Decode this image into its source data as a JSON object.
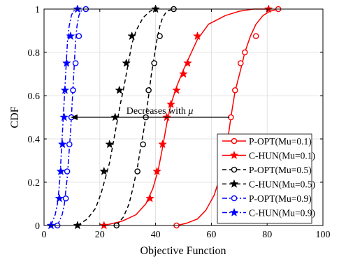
{
  "chart_data": {
    "type": "line",
    "title": "",
    "xlabel": "Objective Function",
    "ylabel": "CDF",
    "xlim": [
      0,
      100
    ],
    "ylim": [
      0,
      1
    ],
    "xticks": [
      0,
      20,
      40,
      60,
      80,
      100
    ],
    "yticks": [
      0,
      0.2,
      0.4,
      0.6,
      0.8,
      1
    ],
    "xtick_labels": [
      "0",
      "20",
      "40",
      "60",
      "80",
      "100"
    ],
    "ytick_labels": [
      "0",
      "0.2",
      "0.4",
      "0.6",
      "0.8",
      "1"
    ],
    "grid": true,
    "legend_position": "bottom-right",
    "annotation": {
      "text_prefix": "Decreases with ",
      "symbol": "μ",
      "arrow_from": [
        66.5,
        0.5
      ],
      "arrow_to": [
        9.5,
        0.5
      ]
    },
    "series": [
      {
        "name": "P-OPT(Mu=0.1)",
        "color": "#ff0000",
        "dash": "solid",
        "marker": "circle",
        "x": [
          47.5,
          51,
          55,
          58,
          61,
          63.5,
          65.5,
          67,
          68.5,
          70.5,
          72,
          74,
          76,
          78.5,
          81,
          84
        ],
        "y": [
          0,
          0.01,
          0.03,
          0.07,
          0.14,
          0.24,
          0.36,
          0.5,
          0.62,
          0.72,
          0.8,
          0.875,
          0.93,
          0.97,
          0.99,
          1
        ],
        "marker_x": [
          47.5,
          65.5,
          67,
          68.5,
          70.5,
          72,
          76,
          84
        ],
        "marker_y": [
          0,
          0.375,
          0.5,
          0.625,
          0.75,
          0.8,
          0.875,
          1
        ]
      },
      {
        "name": "C-HUN(Mu=0.1)",
        "color": "#ff0000",
        "dash": "solid",
        "marker": "star",
        "x": [
          21.5,
          28,
          33,
          36.5,
          39,
          41,
          42.5,
          44,
          45.5,
          47.5,
          50,
          52.5,
          55,
          59,
          65,
          70,
          75,
          80.5
        ],
        "y": [
          0,
          0.02,
          0.05,
          0.1,
          0.17,
          0.26,
          0.36,
          0.47,
          0.56,
          0.64,
          0.72,
          0.79,
          0.86,
          0.93,
          0.97,
          0.99,
          1,
          1
        ],
        "marker_x": [
          21.5,
          38,
          40.5,
          42.5,
          44,
          45.5,
          47.5,
          50,
          51.5,
          55,
          80.5
        ],
        "marker_y": [
          0,
          0.125,
          0.25,
          0.375,
          0.5,
          0.56,
          0.625,
          0.7,
          0.75,
          0.875,
          1
        ]
      },
      {
        "name": "P-OPT(Mu=0.5)",
        "color": "#000000",
        "dash": "dashed",
        "marker": "circle",
        "x": [
          26,
          28.5,
          30.5,
          32,
          33.5,
          34.5,
          35.5,
          36.5,
          37.5,
          38.5,
          39.5,
          40.5,
          41.5,
          42.5,
          44,
          46.5
        ],
        "y": [
          0,
          0.04,
          0.1,
          0.18,
          0.27,
          0.35,
          0.42,
          0.5,
          0.6,
          0.7,
          0.78,
          0.86,
          0.92,
          0.96,
          0.99,
          1
        ],
        "marker_x": [
          26,
          33.5,
          35.5,
          36.5,
          37.5,
          39.5,
          41.5,
          46.5
        ],
        "marker_y": [
          0,
          0.25,
          0.375,
          0.5,
          0.625,
          0.75,
          0.875,
          1
        ]
      },
      {
        "name": "C-HUN(Mu=0.5)",
        "color": "#000000",
        "dash": "dashed",
        "marker": "star",
        "x": [
          12,
          15.5,
          18.5,
          20.5,
          22,
          23.5,
          24.5,
          25.5,
          26.5,
          27.5,
          28.5,
          29.5,
          30.5,
          31.5,
          33,
          35.5,
          38,
          40
        ],
        "y": [
          0,
          0.03,
          0.08,
          0.15,
          0.22,
          0.29,
          0.36,
          0.43,
          0.5,
          0.57,
          0.63,
          0.7,
          0.77,
          0.84,
          0.9,
          0.96,
          0.99,
          1
        ],
        "marker_x": [
          12,
          21.5,
          23.5,
          25.5,
          27,
          29.5,
          31.5,
          40
        ],
        "marker_y": [
          0,
          0.25,
          0.375,
          0.5,
          0.625,
          0.75,
          0.875,
          1
        ]
      },
      {
        "name": "P-OPT(Mu=0.9)",
        "color": "#0000ff",
        "dash": "dashdot",
        "marker": "circle",
        "x": [
          4.8,
          6.5,
          7.3,
          7.8,
          8.3,
          8.7,
          9.1,
          9.5,
          9.8,
          10.1,
          10.4,
          10.7,
          11,
          11.3,
          11.8,
          12.5,
          13.2,
          15
        ],
        "y": [
          0,
          0.05,
          0.1,
          0.16,
          0.22,
          0.29,
          0.36,
          0.43,
          0.5,
          0.57,
          0.64,
          0.71,
          0.78,
          0.85,
          0.92,
          0.97,
          0.99,
          1
        ],
        "marker_x": [
          4.8,
          7.8,
          8.3,
          9.1,
          9.8,
          10.4,
          11.3,
          12.5,
          15
        ],
        "marker_y": [
          0,
          0.125,
          0.25,
          0.375,
          0.5,
          0.625,
          0.75,
          0.875,
          1
        ]
      },
      {
        "name": "C-HUN(Mu=0.9)",
        "color": "#0000ff",
        "dash": "dashdot",
        "marker": "star",
        "x": [
          2.5,
          4,
          4.8,
          5.3,
          5.7,
          6,
          6.3,
          6.6,
          6.9,
          7.2,
          7.5,
          7.8,
          8.1,
          8.4,
          9,
          9.8,
          10.5,
          12
        ],
        "y": [
          0,
          0.05,
          0.1,
          0.16,
          0.22,
          0.29,
          0.36,
          0.43,
          0.5,
          0.57,
          0.64,
          0.71,
          0.78,
          0.85,
          0.92,
          0.97,
          0.99,
          1
        ],
        "marker_x": [
          2.5,
          5.5,
          6,
          6.6,
          7.2,
          7.5,
          8.1,
          9.5,
          12
        ],
        "marker_y": [
          0,
          0.125,
          0.25,
          0.375,
          0.5,
          0.625,
          0.75,
          0.875,
          1
        ]
      }
    ]
  }
}
